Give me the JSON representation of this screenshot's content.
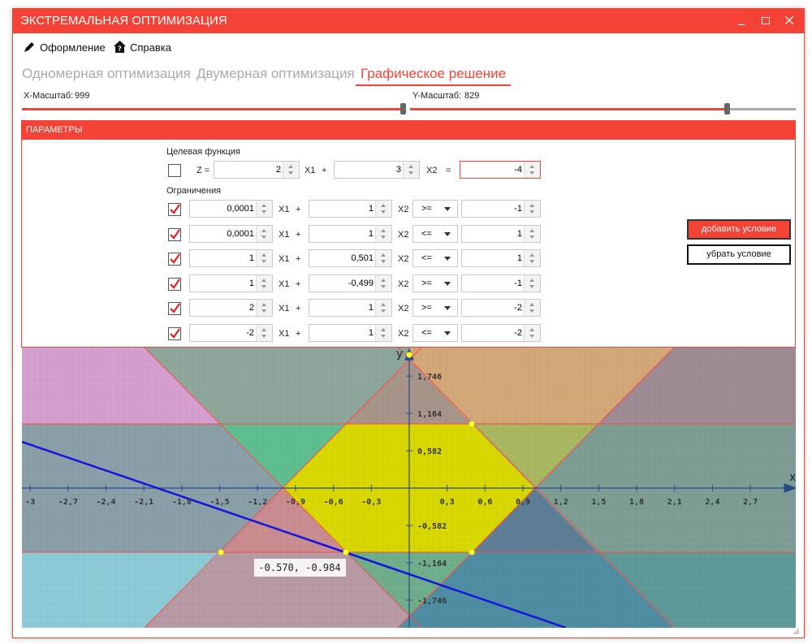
{
  "window": {
    "title": "ЭКСТРЕМАЛЬНАЯ ОПТИМИЗАЦИЯ"
  },
  "menu": [
    "Оформление",
    "Справка"
  ],
  "tabs": {
    "items": [
      "Одномерная оптимизация",
      "Двумерная оптимизация",
      "Графическое решение"
    ],
    "active": 2
  },
  "scales": {
    "x_label": "X-Масштаб:",
    "x_value": "999",
    "y_label": "Y-Масштаб:",
    "y_value": "829"
  },
  "parameters": {
    "title": "ПАРАМЕТРЫ",
    "labels": {
      "x1": "X1",
      "x2": "X2",
      "plus": "+",
      "equals": "="
    },
    "objective": {
      "label": "Целевая функция",
      "checked": false,
      "z": "Z =",
      "coefficients": [
        "2",
        "3",
        "-4"
      ]
    },
    "constraints_label": "Ограничения",
    "constraints": [
      {
        "checked": true,
        "a": "0,0001",
        "b": "1",
        "op": ">=",
        "c": "-1"
      },
      {
        "checked": true,
        "a": "0,0001",
        "b": "1",
        "op": "<=",
        "c": "1"
      },
      {
        "checked": true,
        "a": "1",
        "b": "0,501",
        "op": "<=",
        "c": "1"
      },
      {
        "checked": true,
        "a": "1",
        "b": "-0,499",
        "op": ">=",
        "c": "-1"
      },
      {
        "checked": true,
        "a": "2",
        "b": "1",
        "op": ">=",
        "c": "-2"
      },
      {
        "checked": true,
        "a": "-2",
        "b": "1",
        "op": "<=",
        "c": "-2"
      }
    ]
  },
  "buttons": [
    "добавить условие",
    "убрать условие"
  ],
  "plot": {
    "x_label": "x",
    "y_label": "y",
    "xticks": [
      -3,
      {
        "value": -2.7,
        "label": "-2,7"
      },
      {
        "value": -2.4,
        "label": "-2,4"
      },
      {
        "value": -2.1,
        "label": "-2,1"
      },
      {
        "value": -1.8,
        "label": "-1,8"
      },
      {
        "value": -1.5,
        "label": "-1,5"
      },
      {
        "value": -1.2,
        "label": "-1,2"
      },
      {
        "value": -0.9,
        "label": "-0,9"
      },
      {
        "value": -0.6,
        "label": "-0,6"
      },
      {
        "value": -0.3,
        "label": "-0,3"
      },
      {
        "value": 0.3,
        "label": "0,3"
      },
      {
        "value": 0.6,
        "label": "0,6"
      },
      {
        "value": 0.9,
        "label": "0,9"
      },
      {
        "value": 1.2,
        "label": "1,2"
      },
      {
        "value": 1.5,
        "label": "1,5"
      },
      {
        "value": 1.8,
        "label": "1,8"
      },
      {
        "value": 2.1,
        "label": "2,1"
      },
      {
        "value": 2.4,
        "label": "2,4"
      },
      {
        "value": 2.7,
        "label": "2,7"
      }
    ],
    "yticks": [
      {
        "value": 1.746,
        "label": "1,746"
      },
      {
        "value": 1.164,
        "label": "1,164"
      },
      {
        "value": 0.582,
        "label": "0,582"
      },
      {
        "value": -0.582,
        "label": "-0,582"
      },
      {
        "value": -1.164,
        "label": "-1,164"
      },
      {
        "value": -1.746,
        "label": "-1,746"
      }
    ],
    "cursor_label": "-0.570, -0.984"
  }
}
